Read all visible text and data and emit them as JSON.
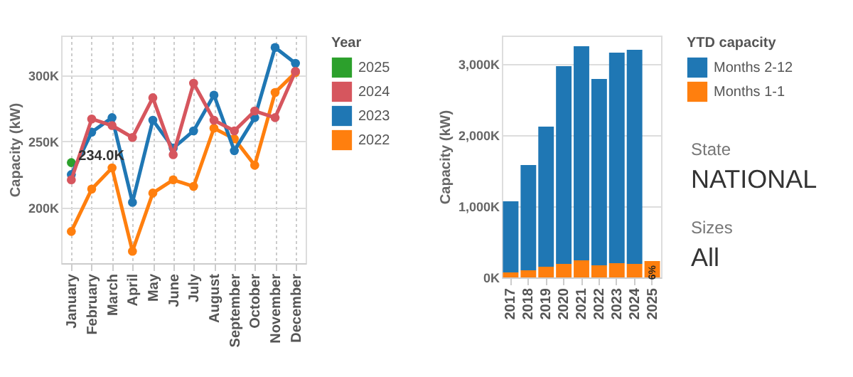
{
  "chart_data": [
    {
      "type": "line",
      "ylabel": "Capacity (kW)",
      "legend_title": "Year",
      "legend": "right",
      "grid": true,
      "marker": "circle",
      "categories": [
        "January",
        "February",
        "March",
        "April",
        "May",
        "June",
        "July",
        "August",
        "September",
        "October",
        "November",
        "December"
      ],
      "ylim": [
        158000,
        330000
      ],
      "yticks": [
        {
          "value": 200000,
          "label": "200K"
        },
        {
          "value": 250000,
          "label": "250K"
        },
        {
          "value": 300000,
          "label": "300K"
        }
      ],
      "series": [
        {
          "name": "2025",
          "color": "#2ca02c",
          "values": [
            234000,
            null,
            null,
            null,
            null,
            null,
            null,
            null,
            null,
            null,
            null,
            null
          ],
          "value_labels": [
            "234.0K",
            null,
            null,
            null,
            null,
            null,
            null,
            null,
            null,
            null,
            null,
            null
          ]
        },
        {
          "name": "2024",
          "color": "#d6565e",
          "values": [
            221000,
            267000,
            262000,
            253000,
            283000,
            240000,
            294000,
            266000,
            258000,
            273000,
            268000,
            303000
          ]
        },
        {
          "name": "2023",
          "color": "#1f77b4",
          "values": [
            225000,
            257000,
            268000,
            204000,
            266000,
            245000,
            258000,
            285000,
            243000,
            268000,
            321000,
            309000
          ]
        },
        {
          "name": "2022",
          "color": "#ff7f0e",
          "values": [
            182000,
            214000,
            230000,
            167000,
            211000,
            221000,
            216000,
            260000,
            252000,
            232000,
            287000,
            302000
          ]
        }
      ]
    },
    {
      "type": "bar",
      "stacked": true,
      "ylabel": "Capacity (kW)",
      "legend_title": "YTD capacity",
      "legend": "right",
      "grid": "y",
      "categories": [
        "2017",
        "2018",
        "2019",
        "2020",
        "2021",
        "2022",
        "2023",
        "2024",
        "2025"
      ],
      "ylim": [
        0,
        3400000
      ],
      "yticks": [
        {
          "value": 0,
          "label": "0K"
        },
        {
          "value": 1000000,
          "label": "1,000K"
        },
        {
          "value": 2000000,
          "label": "2,000K"
        },
        {
          "value": 3000000,
          "label": "3,000K"
        }
      ],
      "annotations": [
        "State",
        "NATIONAL",
        "Sizes",
        "All",
        {
          "text": "6%",
          "x": "2025",
          "y": 230000
        }
      ],
      "series": [
        {
          "name": "Months 1-1",
          "color": "#ff7f0e",
          "values": [
            70000,
            100000,
            150000,
            190000,
            240000,
            170000,
            200000,
            190000,
            230000
          ]
        },
        {
          "name": "Months 2-12",
          "color": "#1f77b4",
          "values": [
            1000000,
            1480000,
            1970000,
            2780000,
            3010000,
            2620000,
            2960000,
            3010000,
            null
          ]
        }
      ]
    }
  ]
}
